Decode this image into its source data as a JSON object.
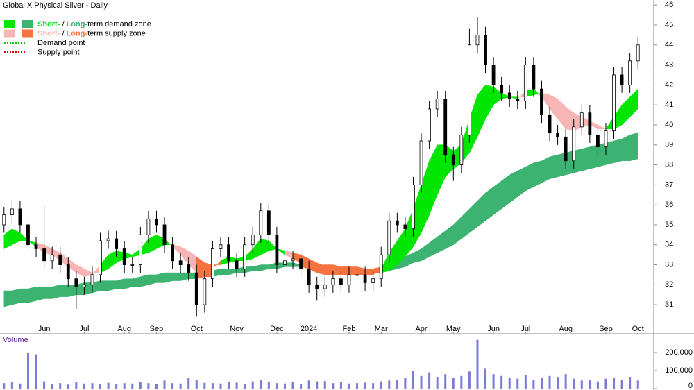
{
  "chart_data": {
    "type": "candlestick",
    "title": "Global X Physical Silver - Daily",
    "categories": [
      null,
      null,
      null,
      null,
      null,
      "Jun",
      null,
      null,
      null,
      null,
      "Jul",
      null,
      null,
      null,
      null,
      "Aug",
      null,
      null,
      null,
      "Sep",
      null,
      null,
      null,
      null,
      "Oct",
      null,
      null,
      null,
      null,
      "Nov",
      null,
      null,
      null,
      null,
      "Dec",
      null,
      null,
      null,
      "2024",
      null,
      null,
      null,
      null,
      "Feb",
      null,
      null,
      null,
      "Mar",
      null,
      null,
      null,
      null,
      "Apr",
      null,
      null,
      null,
      "May",
      null,
      null,
      null,
      null,
      "Jun",
      null,
      null,
      null,
      "Jul",
      null,
      null,
      null,
      null,
      "Aug",
      null,
      null,
      null,
      null,
      "Sep",
      null,
      null,
      null,
      "Oct"
    ],
    "open": [
      35.0,
      35.5,
      35.8,
      35.0,
      34.0,
      33.8,
      33.2,
      33.5,
      33.0,
      32.3,
      31.9,
      32.0,
      32.5,
      34.2,
      34.3,
      33.8,
      33.0,
      33.0,
      34.5,
      35.3,
      35.0,
      34.0,
      33.2,
      33.0,
      32.6,
      31.0,
      32.3,
      33.8,
      34.0,
      33.2,
      32.8,
      34.0,
      34.5,
      35.7,
      34.5,
      33.0,
      33.2,
      33.3,
      32.8,
      32.0,
      31.8,
      32.0,
      32.3,
      32.0,
      32.5,
      32.5,
      32.1,
      32.3,
      33.5,
      35.2,
      35.0,
      34.8,
      37.0,
      39.2,
      40.8,
      41.3,
      38.5,
      38.0,
      39.5,
      44.0,
      44.5,
      43.0,
      42.0,
      41.6,
      41.3,
      41.2,
      43.0,
      41.8,
      40.5,
      39.6,
      39.4,
      38.2,
      39.9,
      40.6,
      39.5,
      38.9,
      39.7,
      42.5,
      42.0,
      43.2
    ],
    "high": [
      35.9,
      36.2,
      36.2,
      35.4,
      34.4,
      36.0,
      33.9,
      33.9,
      33.4,
      32.7,
      32.4,
      32.9,
      34.6,
      34.7,
      34.7,
      34.2,
      33.4,
      34.9,
      35.7,
      35.7,
      35.4,
      34.4,
      33.6,
      33.4,
      33.0,
      32.7,
      34.2,
      34.4,
      34.4,
      33.6,
      34.4,
      34.9,
      36.1,
      36.1,
      34.9,
      33.6,
      33.7,
      33.7,
      33.2,
      32.4,
      32.4,
      32.7,
      32.7,
      32.9,
      32.9,
      32.9,
      32.7,
      33.9,
      35.6,
      35.6,
      35.4,
      37.4,
      39.6,
      41.2,
      41.7,
      41.7,
      38.9,
      39.9,
      44.8,
      45.4,
      44.9,
      43.4,
      42.4,
      42.0,
      41.7,
      43.4,
      43.4,
      42.2,
      40.9,
      40.0,
      39.8,
      40.3,
      41.0,
      41.0,
      39.9,
      40.1,
      42.9,
      42.9,
      43.6,
      44.4
    ],
    "low": [
      34.6,
      35.1,
      34.6,
      33.6,
      33.4,
      32.8,
      32.8,
      32.6,
      31.9,
      30.8,
      31.5,
      31.6,
      32.1,
      33.8,
      33.4,
      32.6,
      32.6,
      32.6,
      34.1,
      34.6,
      33.6,
      32.8,
      32.6,
      32.2,
      30.4,
      30.6,
      31.9,
      33.4,
      32.8,
      32.4,
      32.4,
      33.6,
      34.1,
      34.1,
      32.6,
      32.6,
      32.8,
      32.4,
      31.6,
      31.2,
      31.4,
      31.6,
      31.6,
      31.6,
      32.1,
      31.7,
      31.7,
      31.9,
      33.1,
      34.6,
      34.4,
      34.4,
      36.6,
      38.8,
      40.4,
      38.1,
      37.2,
      37.6,
      39.1,
      43.6,
      42.6,
      41.6,
      41.2,
      40.9,
      40.8,
      40.8,
      41.4,
      40.1,
      39.2,
      39.0,
      37.8,
      37.8,
      39.5,
      39.1,
      38.5,
      38.5,
      39.3,
      41.6,
      41.6,
      42.8
    ],
    "close": [
      35.5,
      35.8,
      35.0,
      34.0,
      33.8,
      33.2,
      33.5,
      33.0,
      32.3,
      31.9,
      32.0,
      32.5,
      34.2,
      34.3,
      33.8,
      33.0,
      33.0,
      34.5,
      35.3,
      35.0,
      34.0,
      33.2,
      33.0,
      32.6,
      31.0,
      32.3,
      33.8,
      34.0,
      33.2,
      32.8,
      34.0,
      34.5,
      35.7,
      34.5,
      33.0,
      33.2,
      33.3,
      32.8,
      32.0,
      31.8,
      32.0,
      32.3,
      32.0,
      32.5,
      32.5,
      32.1,
      32.3,
      33.5,
      35.2,
      35.0,
      34.8,
      37.0,
      39.2,
      40.8,
      41.3,
      38.5,
      38.0,
      39.5,
      44.0,
      44.5,
      43.0,
      42.0,
      41.6,
      41.3,
      41.2,
      43.0,
      41.8,
      40.5,
      39.6,
      39.4,
      38.2,
      39.9,
      40.6,
      39.5,
      38.9,
      39.7,
      42.5,
      42.0,
      43.2,
      44.0
    ],
    "ylim": [
      29.65,
      46.25
    ],
    "yticks": [
      31,
      32,
      33,
      34,
      35,
      36,
      37,
      38,
      39,
      40,
      41,
      42,
      43,
      44,
      45,
      46
    ],
    "short_zone": {
      "fast": [
        34.5,
        34.8,
        34.6,
        34.2,
        33.9,
        33.6,
        33.5,
        33.2,
        32.9,
        32.6,
        32.4,
        32.5,
        33.0,
        33.5,
        33.7,
        33.6,
        33.5,
        33.8,
        34.3,
        34.5,
        34.3,
        33.9,
        33.5,
        33.0,
        32.6,
        32.5,
        32.8,
        33.2,
        33.4,
        33.3,
        33.4,
        33.8,
        34.3,
        34.2,
        33.8,
        33.5,
        33.3,
        33.1,
        32.8,
        32.6,
        32.5,
        32.5,
        32.5,
        32.5,
        32.5,
        32.5,
        32.5,
        32.8,
        33.6,
        34.2,
        34.8,
        35.8,
        37.0,
        38.2,
        39.0,
        39.0,
        38.7,
        39.0,
        40.3,
        41.5,
        42.0,
        41.9,
        41.6,
        41.4,
        41.3,
        41.7,
        41.8,
        41.4,
        40.8,
        40.3,
        39.8,
        39.7,
        39.9,
        40.0,
        39.8,
        39.8,
        40.4,
        41.0,
        41.4,
        41.8
      ],
      "slow": [
        33.8,
        34.0,
        34.2,
        34.2,
        34.1,
        34.0,
        33.8,
        33.6,
        33.3,
        33.0,
        32.8,
        32.6,
        32.6,
        32.8,
        33.1,
        33.3,
        33.4,
        33.5,
        33.6,
        33.8,
        34.0,
        34.0,
        33.9,
        33.7,
        33.4,
        33.1,
        33.0,
        33.0,
        33.1,
        33.2,
        33.2,
        33.3,
        33.5,
        33.7,
        33.8,
        33.7,
        33.6,
        33.5,
        33.3,
        33.1,
        32.9,
        32.8,
        32.7,
        32.7,
        32.6,
        32.6,
        32.6,
        32.6,
        32.7,
        33.0,
        33.4,
        33.9,
        34.6,
        35.5,
        36.5,
        37.4,
        37.8,
        38.1,
        38.6,
        39.4,
        40.3,
        41.0,
        41.3,
        41.4,
        41.4,
        41.4,
        41.5,
        41.6,
        41.5,
        41.3,
        40.9,
        40.6,
        40.4,
        40.2,
        40.0,
        39.8,
        39.8,
        40.0,
        40.4,
        40.8
      ]
    },
    "long_zone": {
      "upper": [
        31.7,
        31.7,
        31.8,
        31.8,
        31.9,
        31.9,
        31.9,
        32.0,
        32.0,
        32.0,
        32.1,
        32.1,
        32.2,
        32.2,
        32.2,
        32.3,
        32.3,
        32.4,
        32.5,
        32.5,
        32.6,
        32.6,
        32.6,
        32.6,
        32.6,
        32.7,
        32.7,
        32.8,
        32.8,
        32.8,
        32.9,
        32.9,
        33.0,
        33.0,
        33.1,
        33.1,
        33.1,
        33.0,
        33.0,
        33.0,
        33.0,
        33.0,
        32.9,
        32.9,
        32.9,
        32.8,
        32.8,
        32.9,
        33.0,
        33.2,
        33.4,
        33.6,
        33.8,
        34.1,
        34.4,
        34.7,
        35.0,
        35.4,
        35.8,
        36.2,
        36.6,
        36.9,
        37.2,
        37.5,
        37.7,
        37.9,
        38.1,
        38.2,
        38.4,
        38.5,
        38.6,
        38.7,
        38.8,
        38.9,
        39.0,
        39.1,
        39.2,
        39.3,
        39.5,
        39.6
      ],
      "lower": [
        30.9,
        31.0,
        31.1,
        31.1,
        31.2,
        31.3,
        31.3,
        31.4,
        31.4,
        31.5,
        31.5,
        31.6,
        31.7,
        31.7,
        31.8,
        31.8,
        31.9,
        31.9,
        32.0,
        32.1,
        32.1,
        32.2,
        32.2,
        32.3,
        32.3,
        32.4,
        32.4,
        32.5,
        32.5,
        32.6,
        32.6,
        32.7,
        32.7,
        32.8,
        32.8,
        32.9,
        32.9,
        32.9,
        32.8,
        32.8,
        32.8,
        32.7,
        32.7,
        32.6,
        32.6,
        32.6,
        32.6,
        32.6,
        32.7,
        32.8,
        32.9,
        33.1,
        33.2,
        33.4,
        33.6,
        33.8,
        34.0,
        34.3,
        34.6,
        34.9,
        35.2,
        35.5,
        35.8,
        36.1,
        36.4,
        36.7,
        36.9,
        37.1,
        37.3,
        37.4,
        37.5,
        37.6,
        37.7,
        37.8,
        37.9,
        38.0,
        38.1,
        38.2,
        38.2,
        38.3
      ]
    },
    "legend": [
      {
        "parts": [
          "Short-",
          " / ",
          "Long-",
          "term demand zone"
        ],
        "colors": [
          "#00e600",
          "#3cb371"
        ]
      },
      {
        "parts": [
          "Short-",
          " / ",
          "Long-",
          "term supply zone"
        ],
        "colors": [
          "#f7b5b5",
          "#f4733f"
        ]
      },
      {
        "parts": [
          "Demand point"
        ],
        "colors": [
          "#00d000"
        ],
        "dotted": true
      },
      {
        "parts": [
          "Supply point"
        ],
        "colors": [
          "#e00000"
        ],
        "dotted": true
      }
    ],
    "volume": {
      "label": "Volume",
      "color": "#7b7bd6",
      "values": [
        30000,
        35000,
        28000,
        200000,
        190000,
        40000,
        25000,
        30000,
        22000,
        35000,
        28000,
        30000,
        25000,
        32000,
        27000,
        30000,
        28000,
        35000,
        30000,
        26000,
        45000,
        30000,
        28000,
        60000,
        50000,
        32000,
        30000,
        28000,
        35000,
        33000,
        27000,
        40000,
        50000,
        38000,
        30000,
        28000,
        35000,
        26000,
        45000,
        40000,
        42000,
        30000,
        35000,
        28000,
        30000,
        33000,
        30000,
        40000,
        45000,
        50000,
        60000,
        100000,
        70000,
        90000,
        65000,
        80000,
        60000,
        70000,
        95000,
        270000,
        110000,
        80000,
        70000,
        60000,
        55000,
        75000,
        50000,
        60000,
        70000,
        65000,
        80000,
        55000,
        45000,
        50000,
        40000,
        55000,
        60000,
        50000,
        65000,
        45000
      ],
      "ylim": [
        0,
        296000
      ],
      "yticks": [
        0,
        {
          "value": 100000,
          "label": "100,000"
        },
        {
          "value": 200000,
          "label": "200,000"
        }
      ]
    }
  }
}
